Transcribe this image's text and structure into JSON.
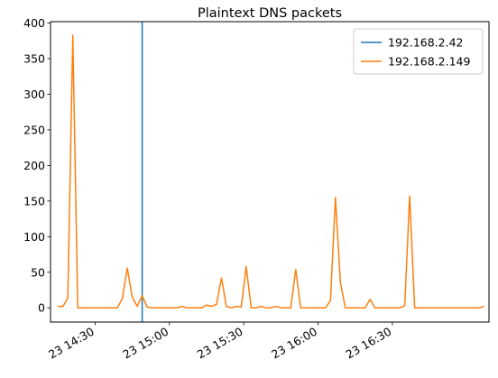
{
  "chart_data": {
    "type": "line",
    "title": "Plaintext DNS packets",
    "xlabel": "",
    "ylabel": "",
    "x_axis": {
      "kind": "time",
      "range": [
        "14:12",
        "17:09"
      ],
      "ticks": [
        {
          "time": "14:30",
          "label": "23 14:30"
        },
        {
          "time": "15:00",
          "label": "23 15:00"
        },
        {
          "time": "15:30",
          "label": "23 15:30"
        },
        {
          "time": "16:00",
          "label": "23 16:00"
        },
        {
          "time": "16:30",
          "label": "23 16:30"
        }
      ]
    },
    "y_axis": {
      "range": [
        -20,
        402
      ],
      "ticks": [
        0,
        50,
        100,
        150,
        200,
        250,
        300,
        350,
        400
      ]
    },
    "grid": false,
    "legend": "top-right",
    "series": [
      {
        "name": "192.168.2.42",
        "color": "#1f77b4",
        "x": [
          "14:49",
          "14:49"
        ],
        "y": [
          -20,
          402
        ]
      },
      {
        "name": "192.168.2.149",
        "color": "#ff7f0e",
        "x": [
          "14:15",
          "14:17",
          "14:19",
          "14:21",
          "14:23",
          "14:25",
          "14:27",
          "14:29",
          "14:31",
          "14:33",
          "14:35",
          "14:37",
          "14:39",
          "14:41",
          "14:43",
          "14:45",
          "14:47",
          "14:49",
          "14:51",
          "14:53",
          "14:55",
          "14:57",
          "14:59",
          "15:01",
          "15:03",
          "15:05",
          "15:07",
          "15:09",
          "15:11",
          "15:13",
          "15:15",
          "15:17",
          "15:19",
          "15:21",
          "15:23",
          "15:25",
          "15:27",
          "15:29",
          "15:31",
          "15:33",
          "15:35",
          "15:37",
          "15:39",
          "15:41",
          "15:43",
          "15:45",
          "15:47",
          "15:49",
          "15:51",
          "15:53",
          "15:55",
          "15:57",
          "15:59",
          "16:01",
          "16:03",
          "16:05",
          "16:07",
          "16:09",
          "16:11",
          "16:13",
          "16:15",
          "16:17",
          "16:19",
          "16:21",
          "16:23",
          "16:25",
          "16:27",
          "16:29",
          "16:31",
          "16:33",
          "16:35",
          "16:37",
          "16:39",
          "16:41",
          "16:43",
          "16:45",
          "16:47",
          "16:49",
          "16:51",
          "16:53",
          "16:55",
          "16:57",
          "16:59",
          "17:01",
          "17:03",
          "17:05",
          "17:07"
        ],
        "y": [
          2,
          2,
          14,
          383,
          0,
          0,
          0,
          0,
          0,
          0,
          0,
          0,
          0,
          13,
          56,
          15,
          2,
          17,
          1,
          0,
          0,
          0,
          0,
          0,
          0,
          2,
          0,
          0,
          0,
          0,
          4,
          2,
          5,
          42,
          2,
          0,
          2,
          1,
          58,
          0,
          0,
          2,
          0,
          0,
          2,
          0,
          0,
          0,
          54,
          0,
          0,
          0,
          0,
          0,
          0,
          10,
          155,
          36,
          0,
          0,
          0,
          0,
          0,
          12,
          0,
          0,
          0,
          0,
          0,
          0,
          3,
          157,
          0,
          0,
          0,
          0,
          0,
          0,
          0,
          0,
          0,
          0,
          0,
          0,
          0,
          0,
          2
        ]
      }
    ]
  }
}
